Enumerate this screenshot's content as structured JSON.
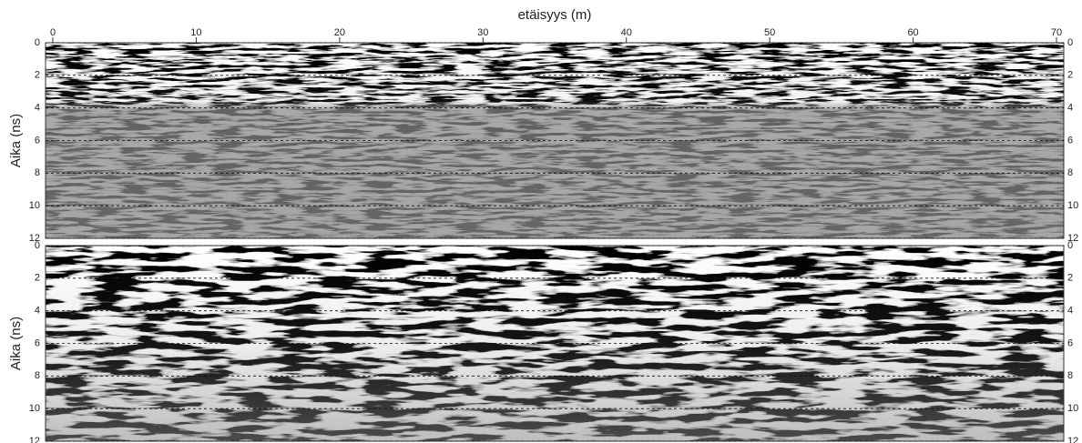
{
  "chart_data": [
    {
      "type": "radargram",
      "xlabel": "etäisyys (m)",
      "ylabel": "Aika (ns)",
      "xlim": [
        0,
        70
      ],
      "xticks": [
        0,
        10,
        20,
        30,
        40,
        50,
        60,
        70
      ],
      "ylim": [
        0,
        12
      ],
      "yticks": [
        0,
        2,
        4,
        6,
        8,
        10,
        12
      ],
      "grid": true
    },
    {
      "type": "radargram",
      "ylabel": "Aika (ns)",
      "ylim": [
        0,
        12
      ],
      "yticks": [
        0,
        2,
        4,
        6,
        8,
        10,
        12
      ],
      "grid": true
    }
  ]
}
